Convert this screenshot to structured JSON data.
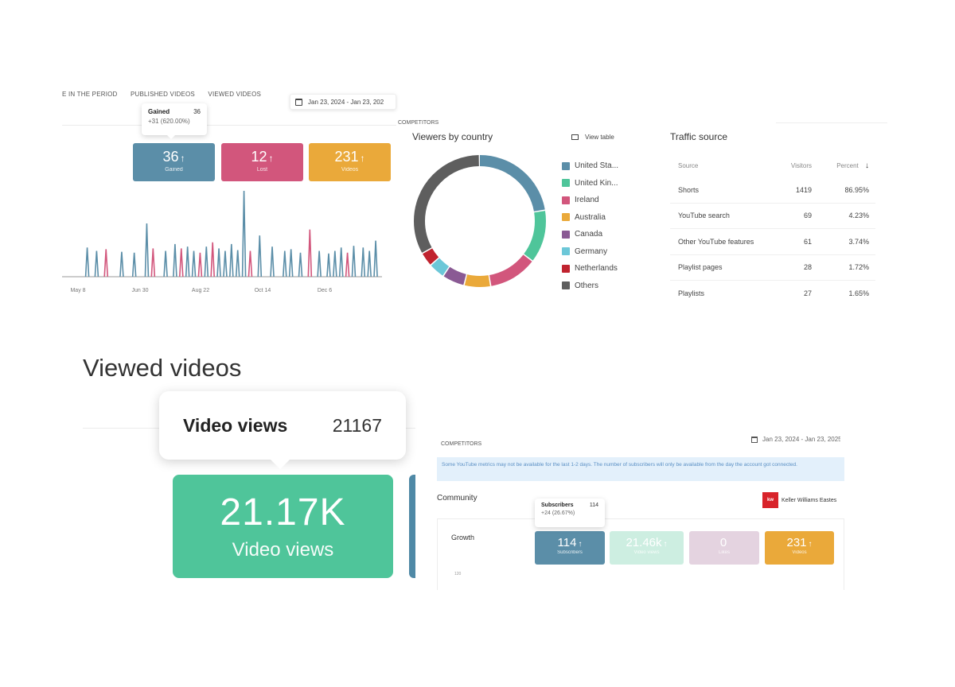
{
  "top_panel": {
    "tabs": [
      "E IN THE PERIOD",
      "PUBLISHED VIDEOS",
      "VIEWED VIDEOS"
    ],
    "date_range": "Jan 23, 2024 - Jan 23, 202",
    "tooltip": {
      "label": "Gained",
      "value": "36",
      "delta": "+31 (620.00%)"
    },
    "stats": [
      {
        "value": "36",
        "label": "Gained",
        "color": "#5b8ea8"
      },
      {
        "value": "12",
        "label": "Lost",
        "color": "#d2567c"
      },
      {
        "value": "231",
        "label": "Videos",
        "color": "#eaa93a"
      }
    ],
    "x_axis_labels": [
      "May 8",
      "Jun 30",
      "Aug 22",
      "Oct 14",
      "Dec 6"
    ],
    "spikes": [
      {
        "x": 0.07,
        "h": 0.34,
        "color": "#5b8ea8"
      },
      {
        "x": 0.1,
        "h": 0.3,
        "color": "#5b8ea8"
      },
      {
        "x": 0.13,
        "h": 0.32,
        "color": "#d2567c"
      },
      {
        "x": 0.18,
        "h": 0.29,
        "color": "#5b8ea8"
      },
      {
        "x": 0.22,
        "h": 0.28,
        "color": "#5b8ea8"
      },
      {
        "x": 0.26,
        "h": 0.62,
        "color": "#5b8ea8"
      },
      {
        "x": 0.28,
        "h": 0.33,
        "color": "#d2567c"
      },
      {
        "x": 0.32,
        "h": 0.3,
        "color": "#5b8ea8"
      },
      {
        "x": 0.35,
        "h": 0.38,
        "color": "#5b8ea8"
      },
      {
        "x": 0.37,
        "h": 0.33,
        "color": "#d2567c"
      },
      {
        "x": 0.39,
        "h": 0.35,
        "color": "#5b8ea8"
      },
      {
        "x": 0.41,
        "h": 0.3,
        "color": "#5b8ea8"
      },
      {
        "x": 0.43,
        "h": 0.28,
        "color": "#d2567c"
      },
      {
        "x": 0.45,
        "h": 0.35,
        "color": "#5b8ea8"
      },
      {
        "x": 0.47,
        "h": 0.4,
        "color": "#d2567c"
      },
      {
        "x": 0.49,
        "h": 0.33,
        "color": "#5b8ea8"
      },
      {
        "x": 0.51,
        "h": 0.3,
        "color": "#5b8ea8"
      },
      {
        "x": 0.53,
        "h": 0.38,
        "color": "#5b8ea8"
      },
      {
        "x": 0.55,
        "h": 0.31,
        "color": "#5b8ea8"
      },
      {
        "x": 0.57,
        "h": 1.0,
        "color": "#5b8ea8"
      },
      {
        "x": 0.59,
        "h": 0.3,
        "color": "#d2567c"
      },
      {
        "x": 0.62,
        "h": 0.48,
        "color": "#5b8ea8"
      },
      {
        "x": 0.66,
        "h": 0.35,
        "color": "#5b8ea8"
      },
      {
        "x": 0.7,
        "h": 0.3,
        "color": "#5b8ea8"
      },
      {
        "x": 0.72,
        "h": 0.32,
        "color": "#5b8ea8"
      },
      {
        "x": 0.75,
        "h": 0.28,
        "color": "#5b8ea8"
      },
      {
        "x": 0.78,
        "h": 0.55,
        "color": "#d2567c"
      },
      {
        "x": 0.81,
        "h": 0.3,
        "color": "#5b8ea8"
      },
      {
        "x": 0.84,
        "h": 0.27,
        "color": "#5b8ea8"
      },
      {
        "x": 0.86,
        "h": 0.3,
        "color": "#5b8ea8"
      },
      {
        "x": 0.88,
        "h": 0.34,
        "color": "#5b8ea8"
      },
      {
        "x": 0.9,
        "h": 0.28,
        "color": "#d2567c"
      },
      {
        "x": 0.92,
        "h": 0.36,
        "color": "#5b8ea8"
      },
      {
        "x": 0.95,
        "h": 0.34,
        "color": "#5b8ea8"
      },
      {
        "x": 0.97,
        "h": 0.3,
        "color": "#5b8ea8"
      },
      {
        "x": 0.99,
        "h": 0.42,
        "color": "#5b8ea8"
      }
    ]
  },
  "viewers_by_country": {
    "competitors_label": "COMPETITORS",
    "title": "Viewers by country",
    "view_table_label": "View table",
    "countries": [
      {
        "name": "United Sta...",
        "color": "#5b8ea8",
        "share": 0.225
      },
      {
        "name": "United Kin...",
        "color": "#4fc59a",
        "share": 0.13
      },
      {
        "name": "Ireland",
        "color": "#d2567c",
        "share": 0.12
      },
      {
        "name": "Australia",
        "color": "#eaa93a",
        "share": 0.065
      },
      {
        "name": "Canada",
        "color": "#8a5a94",
        "share": 0.055
      },
      {
        "name": "Germany",
        "color": "#6cc7d8",
        "share": 0.04
      },
      {
        "name": "Netherlands",
        "color": "#c0232f",
        "share": 0.035
      },
      {
        "name": "Others",
        "color": "#5e5e5e",
        "share": 0.33
      }
    ]
  },
  "traffic_source": {
    "title": "Traffic source",
    "headers": [
      "Source",
      "Visitors",
      "Percent"
    ],
    "rows": [
      [
        "Shorts",
        "1419",
        "86.95%"
      ],
      [
        "YouTube search",
        "69",
        "4.23%"
      ],
      [
        "Other YouTube features",
        "61",
        "3.74%"
      ],
      [
        "Playlist pages",
        "28",
        "1.72%"
      ],
      [
        "Playlists",
        "27",
        "1.65%"
      ]
    ]
  },
  "viewed_videos": {
    "title": "Viewed videos",
    "tooltip_label": "Video views",
    "tooltip_value": "21167",
    "card_value": "21.17K",
    "card_label": "Video views"
  },
  "community": {
    "competitors_label": "COMPETITORS",
    "date_range": "Jan 23, 2024 - Jan 23, 2025",
    "notice": "Some YouTube metrics may not be available for the last 1-2 days. The number of subscribers will only be available from the day the account got connected.",
    "title": "Community",
    "account": "Keller Williams Eastes",
    "account_logo_text": "kw",
    "growth_label": "Growth",
    "axis_top": "120",
    "tooltip": {
      "label": "Subscribers",
      "value": "114",
      "delta": "+24 (26.67%)"
    },
    "stats": [
      {
        "value": "114",
        "label": "Subscribers",
        "color": "#5b8ea8",
        "arrow": "↑"
      },
      {
        "value": "21.46k",
        "label": "Video views",
        "color": "#cdeee1",
        "arrow": "↑"
      },
      {
        "value": "0",
        "label": "Likes",
        "color": "#e4d3e0",
        "arrow": ""
      },
      {
        "value": "231",
        "label": "Videos",
        "color": "#eaa93a",
        "arrow": "↑"
      }
    ]
  }
}
